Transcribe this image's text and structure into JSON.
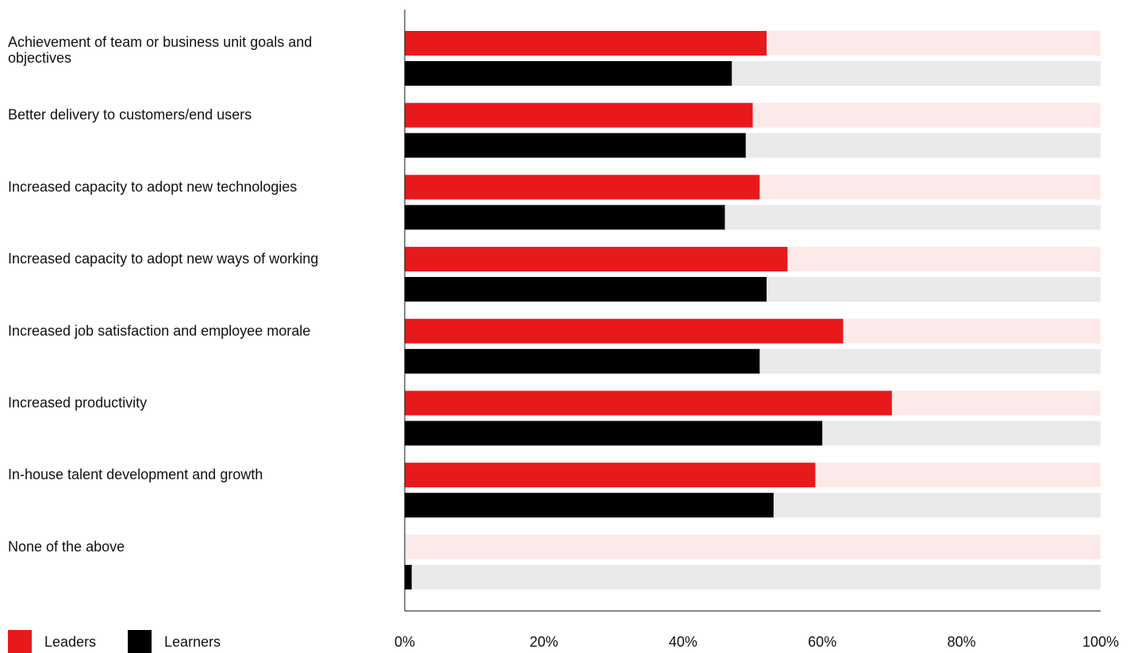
{
  "chart_data": {
    "type": "bar",
    "orientation": "horizontal",
    "categories": [
      "Achievement of team or business unit goals and objectives",
      "Better delivery to customers/end users",
      "Increased capacity to adopt new technologies",
      "Increased capacity to adopt new ways of working",
      "Increased job satisfaction and employee morale",
      "Increased productivity",
      "In-house talent development and growth",
      "None of the above"
    ],
    "series": [
      {
        "name": "Leaders",
        "color": "#E8191B",
        "track_color": "#FCEAEA",
        "values": [
          52,
          50,
          51,
          55,
          63,
          70,
          59,
          0
        ]
      },
      {
        "name": "Learners",
        "color": "#000000",
        "track_color": "#EAEAEA",
        "values": [
          47,
          49,
          46,
          52,
          51,
          60,
          53,
          1
        ]
      }
    ],
    "xlim": [
      0,
      100
    ],
    "x_ticks": [
      "0%",
      "20%",
      "40%",
      "60%",
      "80%",
      "100%"
    ],
    "legend_position": "bottom-left",
    "grid": false
  }
}
